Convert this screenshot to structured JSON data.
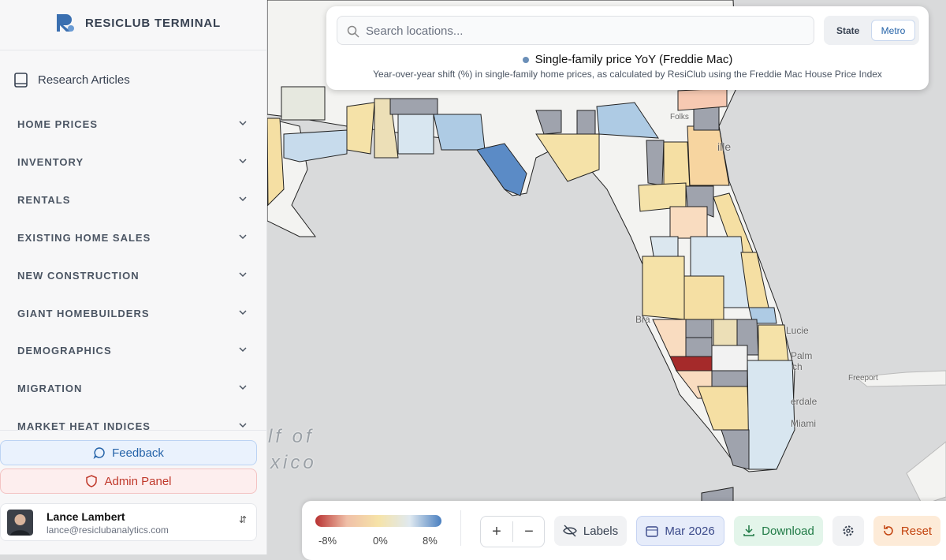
{
  "sidebar": {
    "brand": "RESICLUB TERMINAL",
    "research_link": "Research Articles",
    "nav": [
      "HOME PRICES",
      "INVENTORY",
      "RENTALS",
      "EXISTING HOME SALES",
      "NEW CONSTRUCTION",
      "GIANT HOMEBUILDERS",
      "DEMOGRAPHICS",
      "MIGRATION",
      "MARKET HEAT INDICES"
    ],
    "feedback": "Feedback",
    "admin": "Admin Panel",
    "user": {
      "name": "Lance Lambert",
      "email": "lance@resiclubanalytics.com"
    }
  },
  "search": {
    "placeholder": "Search locations...",
    "toggle": [
      "State",
      "Metro"
    ],
    "metric_title": "Single-family price YoY (Freddie Mac)",
    "metric_description": "Year-over-year shift (%) in single-family home prices, as calculated by ResiClub using the Freddie Mac House Price Index"
  },
  "map": {
    "labels": [
      "lf of",
      "xico",
      "ille",
      "Folks",
      "Bra",
      "Lucie",
      "Palm",
      "ch",
      "Freeport",
      "erdale",
      "Miami"
    ]
  },
  "toolbar": {
    "legend": [
      "-8%",
      "0%",
      "8%"
    ],
    "labels_button": "Labels",
    "date": "Mar 2026",
    "download": "Download",
    "reset": "Reset"
  }
}
